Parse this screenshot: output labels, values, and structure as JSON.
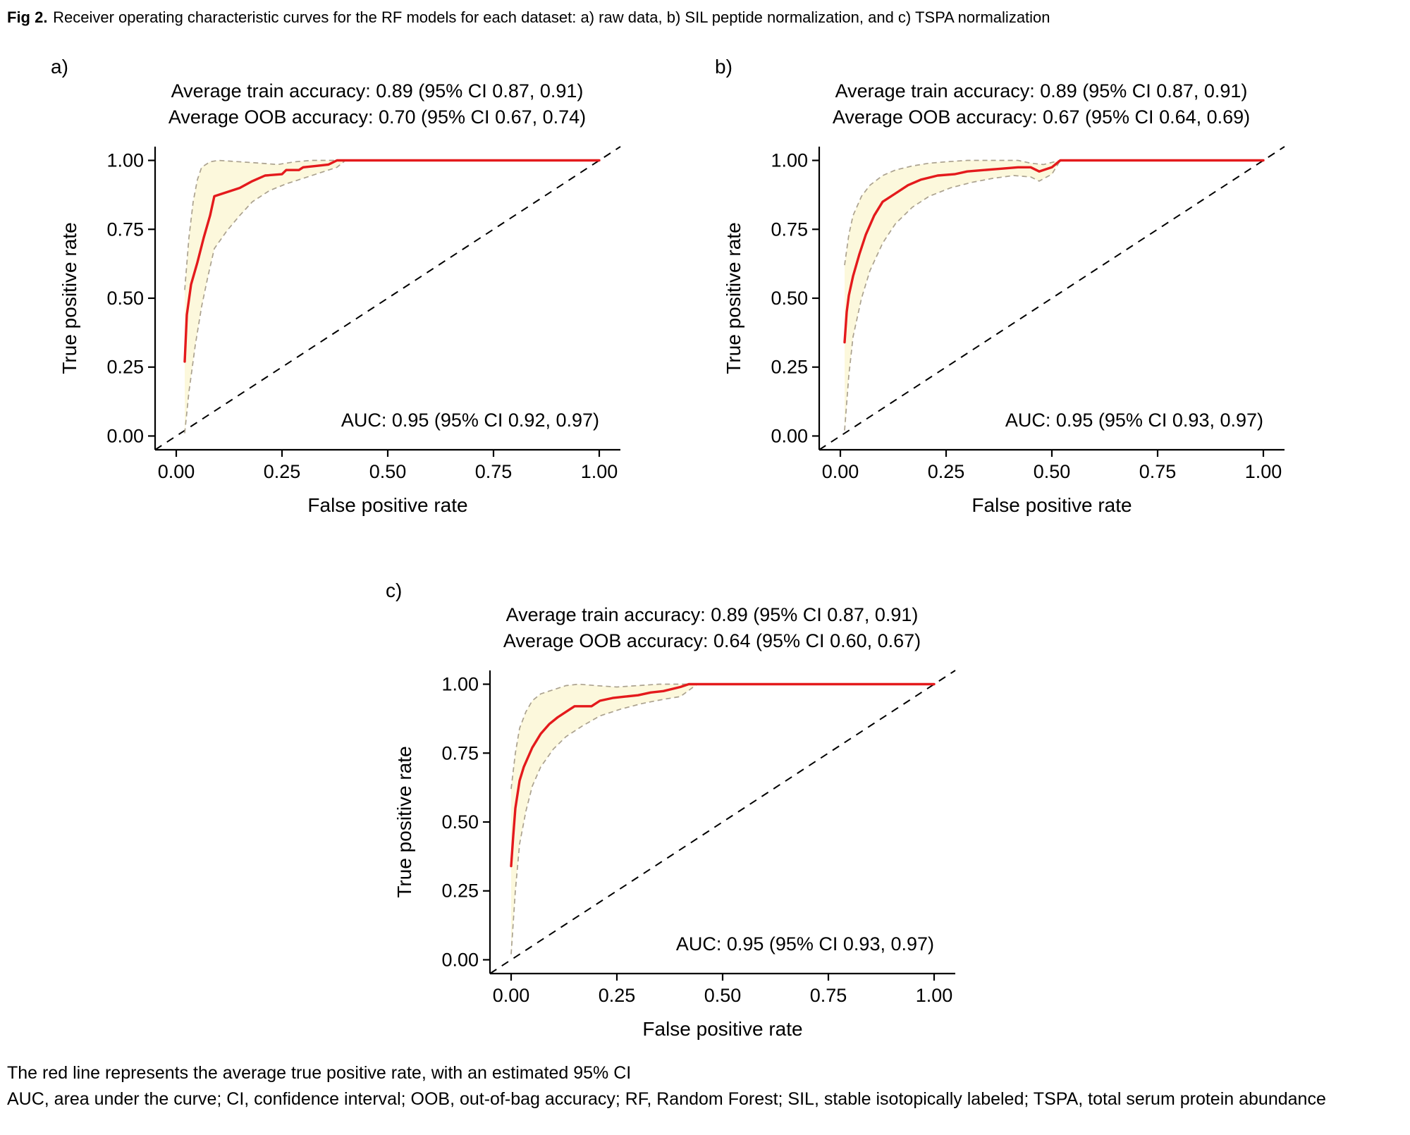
{
  "figure": {
    "title_label": "Fig 2.",
    "title_text": "Receiver operating characteristic curves for the RF models for each dataset: a) raw data, b) SIL peptide normalization, and c) TSPA normalization",
    "footnotes": [
      "The red line represents the average true positive rate, with an estimated 95% CI",
      "AUC, area under the curve; CI, confidence interval; OOB, out-of-bag accuracy; RF, Random Forest; SIL, stable isotopically labeled; TSPA, total serum protein abundance"
    ]
  },
  "colors": {
    "mean_line": "#E41A1C",
    "ci_band_fill": "#FCF8DC",
    "ci_border": "#ABA28F",
    "diagonal": "#000000",
    "axis": "#000000"
  },
  "chart_data": [
    {
      "type": "line",
      "panel_label": "a)",
      "dataset": "raw data",
      "train_accuracy": "Average train accuracy: 0.89 (95% CI 0.87, 0.91)",
      "oob_accuracy": "Average OOB accuracy: 0.70 (95% CI 0.67, 0.74)",
      "auc_label": "AUC: 0.95 (95% CI 0.92, 0.97)",
      "auc": 0.95,
      "auc_ci": [
        0.92,
        0.97
      ],
      "train_mean": 0.89,
      "train_ci": [
        0.87,
        0.91
      ],
      "oob_mean": 0.7,
      "oob_ci": [
        0.67,
        0.74
      ],
      "xlabel": "False positive rate",
      "ylabel": "True positive rate",
      "xlim": [
        0,
        1
      ],
      "ylim": [
        0,
        1
      ],
      "tick_values": [
        0,
        0.25,
        0.5,
        0.75,
        1
      ],
      "xtick_labels": [
        "0.00",
        "0.25",
        "0.50",
        "0.75",
        "1.00"
      ],
      "ytick_labels": [
        "0.00",
        "0.25",
        "0.50",
        "0.75",
        "1.00"
      ],
      "diagonal_reference": true,
      "series": [
        {
          "name": "Average true positive rate",
          "role": "mean",
          "points": [
            [
              0.02,
              0.27
            ],
            [
              0.025,
              0.44
            ],
            [
              0.035,
              0.55
            ],
            [
              0.05,
              0.63
            ],
            [
              0.065,
              0.72
            ],
            [
              0.08,
              0.8
            ],
            [
              0.09,
              0.87
            ],
            [
              0.12,
              0.885
            ],
            [
              0.15,
              0.9
            ],
            [
              0.18,
              0.925
            ],
            [
              0.21,
              0.945
            ],
            [
              0.25,
              0.95
            ],
            [
              0.26,
              0.965
            ],
            [
              0.29,
              0.965
            ],
            [
              0.3,
              0.975
            ],
            [
              0.33,
              0.98
            ],
            [
              0.36,
              0.985
            ],
            [
              0.38,
              1.0
            ],
            [
              1.0,
              1.0
            ]
          ]
        },
        {
          "name": "95% CI upper bound",
          "role": "ci_upper",
          "points": [
            [
              0.02,
              0.53
            ],
            [
              0.03,
              0.72
            ],
            [
              0.04,
              0.85
            ],
            [
              0.05,
              0.93
            ],
            [
              0.06,
              0.975
            ],
            [
              0.08,
              0.995
            ],
            [
              0.1,
              1.0
            ],
            [
              0.2,
              0.99
            ],
            [
              0.24,
              0.985
            ],
            [
              0.28,
              0.995
            ],
            [
              0.32,
              1.0
            ],
            [
              1.0,
              1.0
            ]
          ]
        },
        {
          "name": "95% CI lower bound",
          "role": "ci_lower",
          "points": [
            [
              0.02,
              0.01
            ],
            [
              0.03,
              0.16
            ],
            [
              0.045,
              0.33
            ],
            [
              0.06,
              0.47
            ],
            [
              0.075,
              0.58
            ],
            [
              0.09,
              0.68
            ],
            [
              0.12,
              0.745
            ],
            [
              0.15,
              0.8
            ],
            [
              0.18,
              0.85
            ],
            [
              0.22,
              0.89
            ],
            [
              0.26,
              0.915
            ],
            [
              0.3,
              0.935
            ],
            [
              0.34,
              0.955
            ],
            [
              0.38,
              0.975
            ],
            [
              0.4,
              1.0
            ],
            [
              1.0,
              1.0
            ]
          ]
        }
      ]
    },
    {
      "type": "line",
      "panel_label": "b)",
      "dataset": "SIL peptide normalization",
      "train_accuracy": "Average train accuracy: 0.89 (95% CI 0.87, 0.91)",
      "oob_accuracy": "Average OOB accuracy: 0.67 (95% CI 0.64, 0.69)",
      "auc_label": "AUC: 0.95 (95% CI 0.93, 0.97)",
      "auc": 0.95,
      "auc_ci": [
        0.93,
        0.97
      ],
      "train_mean": 0.89,
      "train_ci": [
        0.87,
        0.91
      ],
      "oob_mean": 0.67,
      "oob_ci": [
        0.64,
        0.69
      ],
      "xlabel": "False positive rate",
      "ylabel": "True positive rate",
      "xlim": [
        0,
        1
      ],
      "ylim": [
        0,
        1
      ],
      "tick_values": [
        0,
        0.25,
        0.5,
        0.75,
        1
      ],
      "xtick_labels": [
        "0.00",
        "0.25",
        "0.50",
        "0.75",
        "1.00"
      ],
      "ytick_labels": [
        "0.00",
        "0.25",
        "0.50",
        "0.75",
        "1.00"
      ],
      "diagonal_reference": true,
      "series": [
        {
          "name": "Average true positive rate",
          "role": "mean",
          "points": [
            [
              0.01,
              0.34
            ],
            [
              0.015,
              0.45
            ],
            [
              0.02,
              0.51
            ],
            [
              0.03,
              0.58
            ],
            [
              0.045,
              0.66
            ],
            [
              0.06,
              0.73
            ],
            [
              0.08,
              0.8
            ],
            [
              0.1,
              0.85
            ],
            [
              0.13,
              0.88
            ],
            [
              0.16,
              0.91
            ],
            [
              0.19,
              0.93
            ],
            [
              0.23,
              0.945
            ],
            [
              0.27,
              0.95
            ],
            [
              0.3,
              0.96
            ],
            [
              0.34,
              0.965
            ],
            [
              0.38,
              0.97
            ],
            [
              0.42,
              0.975
            ],
            [
              0.45,
              0.975
            ],
            [
              0.47,
              0.96
            ],
            [
              0.5,
              0.975
            ],
            [
              0.52,
              1.0
            ],
            [
              1.0,
              1.0
            ]
          ]
        },
        {
          "name": "95% CI upper bound",
          "role": "ci_upper",
          "points": [
            [
              0.01,
              0.62
            ],
            [
              0.02,
              0.73
            ],
            [
              0.03,
              0.8
            ],
            [
              0.05,
              0.87
            ],
            [
              0.07,
              0.91
            ],
            [
              0.1,
              0.945
            ],
            [
              0.13,
              0.965
            ],
            [
              0.17,
              0.98
            ],
            [
              0.21,
              0.99
            ],
            [
              0.25,
              0.995
            ],
            [
              0.3,
              1.0
            ],
            [
              0.42,
              1.0
            ],
            [
              0.45,
              0.99
            ],
            [
              0.48,
              0.985
            ],
            [
              0.52,
              1.0
            ],
            [
              1.0,
              1.0
            ]
          ]
        },
        {
          "name": "95% CI lower bound",
          "role": "ci_lower",
          "points": [
            [
              0.01,
              0.02
            ],
            [
              0.02,
              0.22
            ],
            [
              0.03,
              0.36
            ],
            [
              0.05,
              0.5
            ],
            [
              0.07,
              0.6
            ],
            [
              0.1,
              0.7
            ],
            [
              0.13,
              0.77
            ],
            [
              0.17,
              0.83
            ],
            [
              0.21,
              0.87
            ],
            [
              0.26,
              0.9
            ],
            [
              0.31,
              0.92
            ],
            [
              0.36,
              0.935
            ],
            [
              0.41,
              0.945
            ],
            [
              0.45,
              0.94
            ],
            [
              0.47,
              0.925
            ],
            [
              0.5,
              0.95
            ],
            [
              0.52,
              1.0
            ],
            [
              1.0,
              1.0
            ]
          ]
        }
      ]
    },
    {
      "type": "line",
      "panel_label": "c)",
      "dataset": "TSPA normalization",
      "train_accuracy": "Average train accuracy: 0.89 (95% CI 0.87, 0.91)",
      "oob_accuracy": "Average OOB accuracy: 0.64 (95% CI 0.60, 0.67)",
      "auc_label": "AUC: 0.95 (95% CI 0.93, 0.97)",
      "auc": 0.95,
      "auc_ci": [
        0.93,
        0.97
      ],
      "train_mean": 0.89,
      "train_ci": [
        0.87,
        0.91
      ],
      "oob_mean": 0.64,
      "oob_ci": [
        0.6,
        0.67
      ],
      "xlabel": "False positive rate",
      "ylabel": "True positive rate",
      "xlim": [
        0,
        1
      ],
      "ylim": [
        0,
        1
      ],
      "tick_values": [
        0,
        0.25,
        0.5,
        0.75,
        1
      ],
      "xtick_labels": [
        "0.00",
        "0.25",
        "0.50",
        "0.75",
        "1.00"
      ],
      "ytick_labels": [
        "0.00",
        "0.25",
        "0.50",
        "0.75",
        "1.00"
      ],
      "diagonal_reference": true,
      "series": [
        {
          "name": "Average true positive rate",
          "role": "mean",
          "points": [
            [
              0.0,
              0.34
            ],
            [
              0.005,
              0.45
            ],
            [
              0.01,
              0.55
            ],
            [
              0.02,
              0.65
            ],
            [
              0.03,
              0.7
            ],
            [
              0.05,
              0.77
            ],
            [
              0.07,
              0.82
            ],
            [
              0.09,
              0.855
            ],
            [
              0.11,
              0.88
            ],
            [
              0.14,
              0.91
            ],
            [
              0.15,
              0.92
            ],
            [
              0.19,
              0.92
            ],
            [
              0.21,
              0.94
            ],
            [
              0.24,
              0.95
            ],
            [
              0.27,
              0.955
            ],
            [
              0.3,
              0.96
            ],
            [
              0.33,
              0.97
            ],
            [
              0.36,
              0.975
            ],
            [
              0.4,
              0.99
            ],
            [
              0.42,
              1.0
            ],
            [
              1.0,
              1.0
            ]
          ]
        },
        {
          "name": "95% CI upper bound",
          "role": "ci_upper",
          "points": [
            [
              0.0,
              0.62
            ],
            [
              0.01,
              0.75
            ],
            [
              0.02,
              0.84
            ],
            [
              0.035,
              0.9
            ],
            [
              0.05,
              0.94
            ],
            [
              0.07,
              0.965
            ],
            [
              0.1,
              0.98
            ],
            [
              0.13,
              0.995
            ],
            [
              0.16,
              1.0
            ],
            [
              0.2,
              0.995
            ],
            [
              0.25,
              0.99
            ],
            [
              0.3,
              0.995
            ],
            [
              0.35,
              1.0
            ],
            [
              1.0,
              1.0
            ]
          ]
        },
        {
          "name": "95% CI lower bound",
          "role": "ci_lower",
          "points": [
            [
              0.0,
              0.02
            ],
            [
              0.01,
              0.25
            ],
            [
              0.02,
              0.42
            ],
            [
              0.035,
              0.54
            ],
            [
              0.05,
              0.63
            ],
            [
              0.07,
              0.7
            ],
            [
              0.1,
              0.765
            ],
            [
              0.13,
              0.81
            ],
            [
              0.17,
              0.85
            ],
            [
              0.21,
              0.885
            ],
            [
              0.26,
              0.91
            ],
            [
              0.31,
              0.93
            ],
            [
              0.36,
              0.945
            ],
            [
              0.4,
              0.955
            ],
            [
              0.44,
              1.0
            ],
            [
              1.0,
              1.0
            ]
          ]
        }
      ]
    }
  ]
}
